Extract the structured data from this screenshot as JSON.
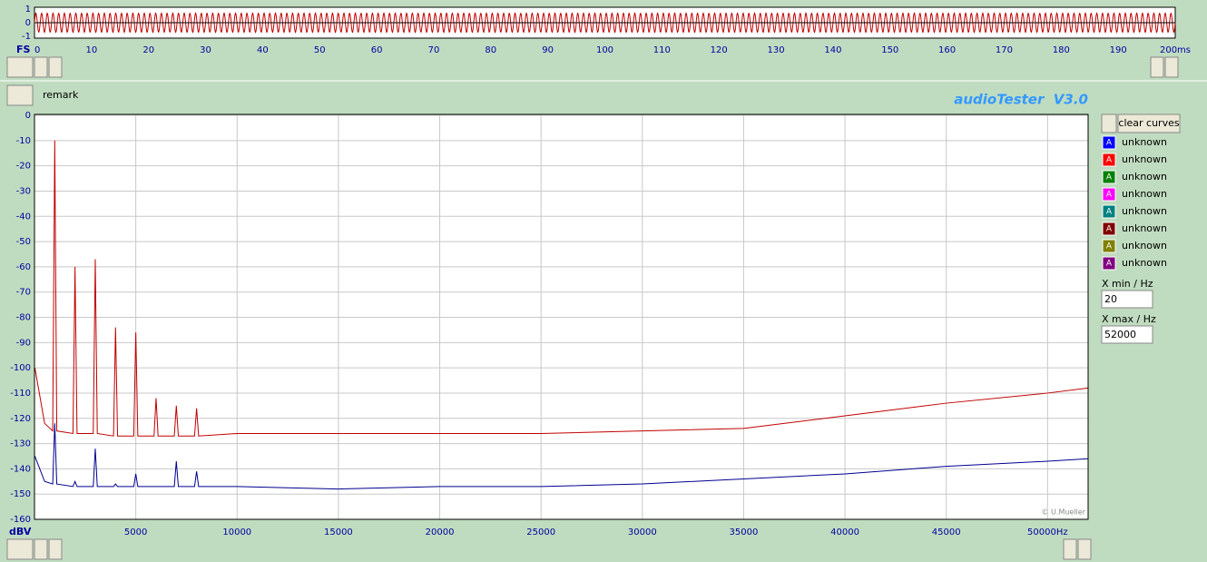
{
  "chart_data": [
    {
      "type": "sine",
      "frequency": 1000,
      "amplitude": 0.7,
      "color": "#c00000",
      "xlim": [
        0,
        200
      ],
      "xticks": [
        0,
        10,
        20,
        30,
        40,
        50,
        60,
        70,
        80,
        90,
        100,
        110,
        120,
        130,
        140,
        150,
        160,
        170,
        180,
        190,
        {
          "value": 200,
          "label": "200ms"
        }
      ],
      "ylim": [
        -1,
        1
      ],
      "yticks": [
        1,
        0,
        -1
      ],
      "x_label": "FS"
    },
    {
      "type": "line",
      "x_label": "dBV",
      "watermark": "© U.Mueller",
      "x": [
        20,
        500,
        900,
        1000,
        1100,
        1900,
        2000,
        2100,
        2900,
        3000,
        3100,
        3900,
        4000,
        4100,
        4900,
        5000,
        5100,
        5900,
        6000,
        6100,
        6900,
        7000,
        7100,
        7900,
        8000,
        8100,
        10000,
        15000,
        20000,
        25000,
        30000,
        35000,
        40000,
        45000,
        50000,
        52000
      ],
      "series": [
        {
          "color": "#c00000",
          "values": [
            -100,
            -122,
            -125,
            -10,
            -125,
            -126,
            -60,
            -126,
            -126,
            -57,
            -126,
            -127,
            -84,
            -127,
            -127,
            -86,
            -127,
            -127,
            -112,
            -127,
            -127,
            -115,
            -127,
            -127,
            -116,
            -127,
            -126,
            -126,
            -126,
            -126,
            -125,
            -124,
            -119,
            -114,
            -110,
            -108
          ]
        },
        {
          "color": "#000090",
          "values": [
            -135,
            -145,
            -146,
            -122,
            -146,
            -147,
            -145,
            -147,
            -147,
            -132,
            -147,
            -147,
            -146,
            -147,
            -147,
            -142,
            -147,
            -147,
            -147,
            -147,
            -147,
            -137,
            -147,
            -147,
            -141,
            -147,
            -147,
            -148,
            -147,
            -147,
            -146,
            -144,
            -142,
            -139,
            -137,
            -136
          ]
        }
      ],
      "xlim": [
        0,
        52000
      ],
      "xticks": [
        5000,
        10000,
        15000,
        20000,
        25000,
        30000,
        35000,
        40000,
        45000,
        {
          "value": 50000,
          "label": "50000Hz"
        }
      ],
      "ylim": [
        -160,
        0
      ],
      "yticks": [
        0,
        -10,
        -20,
        -30,
        -40,
        -50,
        -60,
        -70,
        -80,
        -90,
        -100,
        -110,
        -120,
        -130,
        -140,
        -150,
        -160
      ],
      "grid": true
    }
  ],
  "remark": "remark",
  "app_title": "audioTester  V3.0",
  "sidebar": {
    "clear_button": "clear curves",
    "curves": [
      {
        "name": "unknown",
        "color": "#0000ff"
      },
      {
        "name": "unknown",
        "color": "#ff0000"
      },
      {
        "name": "unknown",
        "color": "#008000"
      },
      {
        "name": "unknown",
        "color": "#ff00ff"
      },
      {
        "name": "unknown",
        "color": "#008080"
      },
      {
        "name": "unknown",
        "color": "#800000"
      },
      {
        "name": "unknown",
        "color": "#808000"
      },
      {
        "name": "unknown",
        "color": "#800080"
      }
    ],
    "xmin_label": "X min / Hz",
    "xmin": "20",
    "xmax_label": "X max / Hz",
    "xmax": "52000"
  }
}
